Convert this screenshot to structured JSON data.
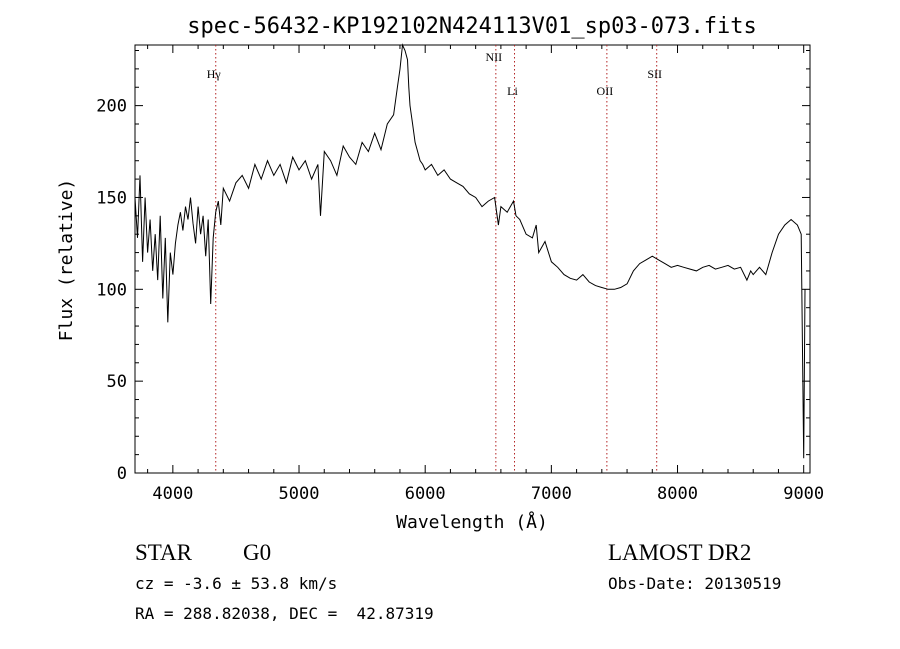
{
  "chart_data": {
    "type": "line",
    "title": "spec-56432-KP192102N424113V01_sp03-073.fits",
    "xlabel": "Wavelength (Å)",
    "ylabel": "Flux (relative)",
    "xlim": [
      3700,
      9050
    ],
    "ylim": [
      0,
      233
    ],
    "x_ticks": [
      "4000",
      "5000",
      "6000",
      "7000",
      "8000",
      "9000"
    ],
    "y_ticks": [
      "0",
      "50",
      "100",
      "150",
      "200"
    ],
    "grid": false,
    "series": [
      {
        "x": [
          3700,
          3720,
          3740,
          3760,
          3780,
          3800,
          3820,
          3840,
          3860,
          3880,
          3900,
          3920,
          3940,
          3960,
          3980,
          4000,
          4020,
          4040,
          4060,
          4080,
          4100,
          4120,
          4140,
          4160,
          4180,
          4200,
          4220,
          4240,
          4260,
          4280,
          4300,
          4320,
          4340,
          4360,
          4380,
          4400,
          4450,
          4500,
          4550,
          4600,
          4650,
          4700,
          4750,
          4800,
          4850,
          4900,
          4950,
          5000,
          5050,
          5100,
          5150,
          5170,
          5200,
          5250,
          5300,
          5350,
          5400,
          5450,
          5500,
          5550,
          5600,
          5650,
          5700,
          5750,
          5780,
          5800,
          5820,
          5840,
          5860,
          5870,
          5880,
          5890,
          5900,
          5920,
          5940,
          5960,
          5980,
          6000,
          6050,
          6100,
          6150,
          6200,
          6250,
          6300,
          6350,
          6400,
          6450,
          6500,
          6550,
          6580,
          6600,
          6650,
          6700,
          6720,
          6750,
          6800,
          6850,
          6880,
          6900,
          6950,
          7000,
          7050,
          7100,
          7150,
          7200,
          7250,
          7300,
          7350,
          7400,
          7450,
          7500,
          7550,
          7600,
          7650,
          7700,
          7750,
          7800,
          7850,
          7900,
          7950,
          8000,
          8050,
          8100,
          8150,
          8200,
          8250,
          8300,
          8350,
          8400,
          8450,
          8500,
          8550,
          8580,
          8600,
          8650,
          8700,
          8750,
          8800,
          8850,
          8900,
          8950,
          8980,
          9000,
          9010
        ],
        "y": [
          150,
          128,
          162,
          115,
          150,
          120,
          138,
          110,
          130,
          105,
          140,
          95,
          128,
          82,
          120,
          108,
          125,
          135,
          142,
          132,
          145,
          138,
          150,
          136,
          125,
          145,
          130,
          140,
          118,
          138,
          92,
          128,
          142,
          148,
          135,
          155,
          148,
          158,
          162,
          155,
          168,
          160,
          170,
          162,
          168,
          158,
          172,
          165,
          170,
          160,
          168,
          140,
          175,
          170,
          162,
          178,
          172,
          168,
          180,
          175,
          185,
          176,
          190,
          195,
          210,
          220,
          235,
          230,
          225,
          210,
          200,
          195,
          190,
          180,
          175,
          170,
          168,
          165,
          168,
          162,
          165,
          160,
          158,
          156,
          152,
          150,
          145,
          148,
          150,
          135,
          145,
          142,
          148,
          140,
          138,
          130,
          128,
          135,
          120,
          126,
          115,
          112,
          108,
          106,
          105,
          108,
          104,
          102,
          101,
          100,
          100,
          101,
          103,
          110,
          114,
          116,
          118,
          116,
          114,
          112,
          113,
          112,
          111,
          110,
          112,
          113,
          111,
          112,
          113,
          111,
          112,
          105,
          110,
          108,
          112,
          108,
          120,
          130,
          135,
          138,
          135,
          130,
          8,
          100
        ]
      }
    ],
    "lines": [
      {
        "label": "Hγ",
        "x": 4340
      },
      {
        "label": "NII",
        "x": 6560
      },
      {
        "label": "Li",
        "x": 6708
      },
      {
        "label": "OII",
        "x": 7440
      },
      {
        "label": "SII",
        "x": 7835
      }
    ]
  },
  "info": {
    "class": "STAR",
    "subclass": "G0",
    "survey": "LAMOST DR2",
    "redshift": "cz = -3.6 ± 53.8 km/s",
    "obsdate": "Obs-Date: 20130519",
    "coords": "RA = 288.82038, DEC =  42.87319"
  }
}
